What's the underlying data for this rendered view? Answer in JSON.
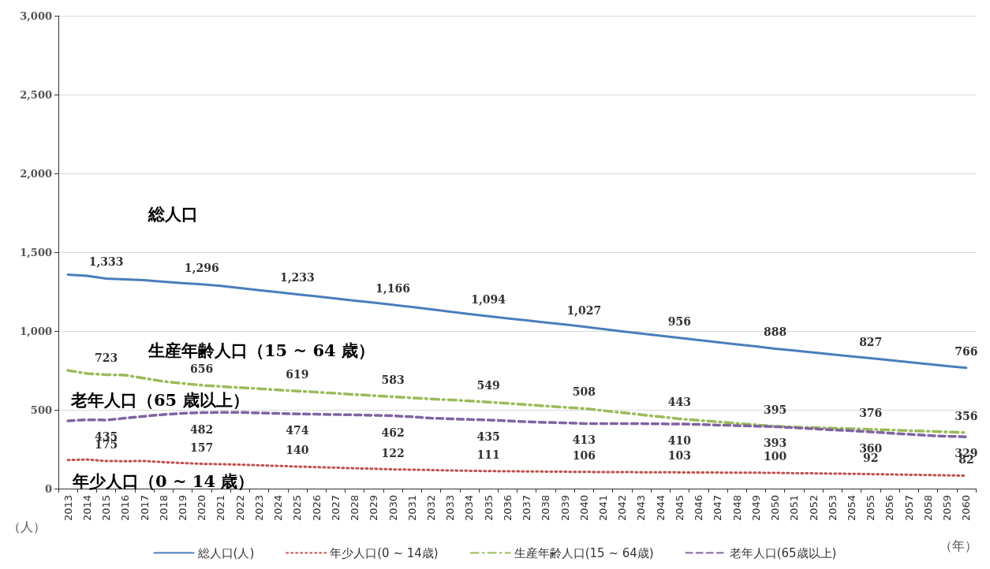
{
  "chart_data": {
    "type": "line",
    "xlabel": "（年）",
    "ylabel": "（人）",
    "categories": [
      "2013",
      "2014",
      "2015",
      "2016",
      "2017",
      "2018",
      "2019",
      "2020",
      "2021",
      "2022",
      "2023",
      "2024",
      "2025",
      "2026",
      "2027",
      "2028",
      "2029",
      "2030",
      "2031",
      "2032",
      "2033",
      "2034",
      "2035",
      "2036",
      "2037",
      "2038",
      "2039",
      "2040",
      "2041",
      "2042",
      "2043",
      "2044",
      "2045",
      "2046",
      "2047",
      "2048",
      "2049",
      "2050",
      "2051",
      "2052",
      "2053",
      "2054",
      "2055",
      "2056",
      "2057",
      "2058",
      "2059",
      "2060"
    ],
    "series": [
      {
        "name": "総人口(人)",
        "color": "#4a7ebb",
        "line_style": "solid",
        "values": [
          1358,
          1350,
          1333,
          1328,
          1322,
          1313,
          1304,
          1296,
          1286,
          1272,
          1259,
          1246,
          1233,
          1220,
          1206,
          1193,
          1180,
          1166,
          1152,
          1137,
          1123,
          1108,
          1094,
          1080,
          1067,
          1054,
          1041,
          1027,
          1012,
          998,
          984,
          970,
          956,
          942,
          929,
          915,
          902,
          888,
          876,
          864,
          851,
          839,
          827,
          815,
          803,
          790,
          778,
          766
        ],
        "value_labels": [
          null,
          null,
          "1,333",
          null,
          null,
          null,
          null,
          "1,296",
          null,
          null,
          null,
          null,
          "1,233",
          null,
          null,
          null,
          null,
          "1,166",
          null,
          null,
          null,
          null,
          "1,094",
          null,
          null,
          null,
          null,
          "1,027",
          null,
          null,
          null,
          null,
          "956",
          null,
          null,
          null,
          null,
          "888",
          null,
          null,
          null,
          null,
          "827",
          null,
          null,
          null,
          null,
          "766"
        ]
      },
      {
        "name": "年少人口(0 ~ 14歳)",
        "color": "#c0504d",
        "line_style": "dotted",
        "values": [
          181,
          185,
          175,
          174,
          175,
          168,
          162,
          157,
          155,
          152,
          148,
          144,
          140,
          136,
          133,
          129,
          126,
          122,
          120,
          118,
          115,
          113,
          111,
          110,
          109,
          108,
          107,
          106,
          105,
          105,
          104,
          104,
          103,
          102,
          102,
          101,
          101,
          100,
          98,
          97,
          95,
          94,
          92,
          90,
          88,
          86,
          84,
          82
        ],
        "value_labels": [
          null,
          null,
          "175",
          null,
          null,
          null,
          null,
          "157",
          null,
          null,
          null,
          null,
          "140",
          null,
          null,
          null,
          null,
          "122",
          null,
          null,
          null,
          null,
          "111",
          null,
          null,
          null,
          null,
          "106",
          null,
          null,
          null,
          null,
          "103",
          null,
          null,
          null,
          null,
          "100",
          null,
          null,
          null,
          null,
          "92",
          null,
          null,
          null,
          null,
          "82"
        ]
      },
      {
        "name": "生産年齢人口(15 ~ 64歳)",
        "color": "#9bbb59",
        "line_style": "dashdot",
        "values": [
          750,
          730,
          723,
          720,
          700,
          680,
          668,
          656,
          648,
          641,
          634,
          626,
          619,
          612,
          605,
          597,
          590,
          583,
          576,
          569,
          563,
          556,
          549,
          541,
          533,
          524,
          516,
          508,
          495,
          482,
          469,
          456,
          443,
          433,
          424,
          414,
          405,
          395,
          391,
          387,
          384,
          380,
          376,
          372,
          368,
          364,
          360,
          356
        ],
        "value_labels": [
          null,
          null,
          "723",
          null,
          null,
          null,
          null,
          "656",
          null,
          null,
          null,
          null,
          "619",
          null,
          null,
          null,
          null,
          "583",
          null,
          null,
          null,
          null,
          "549",
          null,
          null,
          null,
          null,
          "508",
          null,
          null,
          null,
          null,
          "443",
          null,
          null,
          null,
          null,
          "395",
          null,
          null,
          null,
          null,
          "376",
          null,
          null,
          null,
          null,
          "356"
        ]
      },
      {
        "name": "老年人口(65歳以上)",
        "color": "#8064a2",
        "line_style": "dashed",
        "values": [
          430,
          437,
          435,
          447,
          459,
          470,
          478,
          482,
          484,
          484,
          480,
          477,
          474,
          472,
          470,
          468,
          465,
          462,
          456,
          447,
          443,
          439,
          435,
          430,
          424,
          420,
          417,
          413,
          413,
          412,
          412,
          411,
          410,
          407,
          403,
          400,
          396,
          393,
          386,
          380,
          373,
          367,
          360,
          352,
          345,
          337,
          332,
          329
        ],
        "value_labels": [
          null,
          null,
          "435",
          null,
          null,
          null,
          null,
          "482",
          null,
          null,
          null,
          null,
          "474",
          null,
          null,
          null,
          null,
          "462",
          null,
          null,
          null,
          null,
          "435",
          null,
          null,
          null,
          null,
          "413",
          null,
          null,
          null,
          null,
          "410",
          null,
          null,
          null,
          null,
          "393",
          null,
          null,
          null,
          null,
          "360",
          null,
          null,
          null,
          null,
          "329"
        ]
      }
    ],
    "annotations": [
      "総人口",
      "生産年齢人口（15 ~ 64 歳）",
      "老年人口（65 歳以上）",
      "年少人口（0 ~ 14 歳）"
    ],
    "ylim": [
      0,
      3000
    ],
    "yticks": [
      0,
      500,
      {
        "value": 1000,
        "label": "1,000"
      },
      {
        "value": 1500,
        "label": "1,500"
      },
      {
        "value": 2000,
        "label": "2,000"
      },
      {
        "value": 2500,
        "label": "2,500"
      },
      {
        "value": 3000,
        "label": "3,000"
      }
    ],
    "grid": "y",
    "legend": "bottom",
    "marker": "none"
  }
}
